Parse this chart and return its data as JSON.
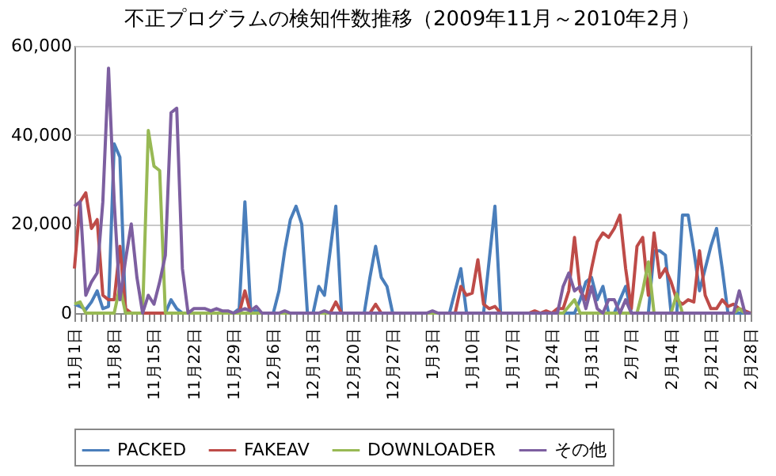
{
  "chart_data": {
    "type": "line",
    "title": "不正プログラムの検知件数推移（2009年11月～2010年2月）",
    "categories": [
      "11月1日",
      null,
      null,
      null,
      null,
      null,
      null,
      "11月8日",
      null,
      null,
      null,
      null,
      null,
      null,
      "11月15日",
      null,
      null,
      null,
      null,
      null,
      null,
      "11月22日",
      null,
      null,
      null,
      null,
      null,
      null,
      "11月29日",
      null,
      null,
      null,
      null,
      null,
      null,
      "12月6日",
      null,
      null,
      null,
      null,
      null,
      null,
      "12月13日",
      null,
      null,
      null,
      null,
      null,
      null,
      "12月20日",
      null,
      null,
      null,
      null,
      null,
      null,
      "12月27日",
      null,
      null,
      null,
      null,
      null,
      null,
      "1月3日",
      null,
      null,
      null,
      null,
      null,
      null,
      "1月10日",
      null,
      null,
      null,
      null,
      null,
      null,
      "1月17日",
      null,
      null,
      null,
      null,
      null,
      null,
      "1月24日",
      null,
      null,
      null,
      null,
      null,
      null,
      "1月31日",
      null,
      null,
      null,
      null,
      null,
      null,
      "2月7日",
      null,
      null,
      null,
      null,
      null,
      null,
      "2月14日",
      null,
      null,
      null,
      null,
      null,
      null,
      "2月21日",
      null,
      null,
      null,
      null,
      null,
      null,
      "2月28日"
    ],
    "series": [
      {
        "name": "PACKED",
        "color": "#4a7ebb",
        "values": [
          2000,
          1500,
          800,
          2500,
          5000,
          1000,
          1500,
          38000,
          35000,
          0,
          0,
          0,
          0,
          0,
          0,
          0,
          0,
          3000,
          1000,
          0,
          0,
          0,
          0,
          0,
          0,
          0,
          0,
          0,
          0,
          1000,
          25000,
          1000,
          500,
          0,
          0,
          0,
          5000,
          14000,
          21000,
          24000,
          20000,
          0,
          0,
          6000,
          4000,
          14000,
          24000,
          0,
          0,
          0,
          0,
          0,
          8000,
          15000,
          8000,
          6000,
          0,
          0,
          0,
          0,
          0,
          0,
          0,
          0,
          0,
          0,
          0,
          5000,
          10000,
          0,
          0,
          0,
          0,
          12000,
          24000,
          0,
          0,
          0,
          0,
          0,
          0,
          0,
          0,
          0,
          0,
          0,
          0,
          0,
          0,
          3000,
          7000,
          8000,
          3000,
          6000,
          0,
          0,
          3000,
          6000,
          0,
          0,
          0,
          0,
          14000,
          14000,
          13000,
          0,
          0,
          22000,
          22000,
          14000,
          5000,
          10000,
          15000,
          19000,
          10000,
          0,
          0,
          0,
          0,
          0
        ]
      },
      {
        "name": "FAKEAV",
        "color": "#be4b48",
        "values": [
          10000,
          25000,
          27000,
          19000,
          21000,
          4000,
          3000,
          3000,
          15000,
          1000,
          0,
          0,
          0,
          0,
          0,
          0,
          0,
          0,
          0,
          0,
          0,
          0,
          0,
          0,
          0,
          0,
          0,
          0,
          0,
          0,
          5000,
          0,
          0,
          0,
          0,
          0,
          0,
          0,
          0,
          0,
          0,
          0,
          0,
          0,
          0,
          0,
          2500,
          0,
          0,
          0,
          0,
          0,
          0,
          2000,
          0,
          0,
          0,
          0,
          0,
          0,
          0,
          0,
          0,
          0,
          0,
          0,
          0,
          0,
          6000,
          4000,
          4500,
          12000,
          2000,
          1000,
          1500,
          0,
          0,
          0,
          0,
          0,
          0,
          500,
          0,
          500,
          0,
          1000,
          1000,
          5000,
          17000,
          5000,
          3000,
          10000,
          16000,
          18000,
          17000,
          19000,
          22000,
          10000,
          1000,
          15000,
          17000,
          4000,
          18000,
          8000,
          10000,
          7000,
          3000,
          2000,
          3000,
          2500,
          14000,
          4000,
          1000,
          1000,
          3000,
          1500,
          2000,
          1000,
          500,
          0
        ]
      },
      {
        "name": "DOWNLOADER",
        "color": "#98b954",
        "values": [
          2000,
          2500,
          0,
          0,
          0,
          0,
          0,
          0,
          6000,
          0,
          0,
          0,
          0,
          41000,
          33000,
          32000,
          0,
          0,
          0,
          0,
          0,
          0,
          0,
          0,
          0,
          0,
          0,
          0,
          0,
          0,
          0,
          0,
          0,
          0,
          0,
          0,
          0,
          0,
          0,
          0,
          0,
          0,
          0,
          0,
          0,
          0,
          0,
          0,
          0,
          0,
          0,
          0,
          0,
          0,
          0,
          0,
          0,
          0,
          0,
          0,
          0,
          0,
          0,
          0,
          0,
          0,
          0,
          0,
          0,
          0,
          0,
          0,
          0,
          0,
          0,
          0,
          0,
          0,
          0,
          0,
          0,
          0,
          0,
          0,
          0,
          0,
          0,
          1500,
          3000,
          0,
          0,
          0,
          0,
          0,
          0,
          0,
          0,
          0,
          0,
          0,
          5000,
          11500,
          0,
          0,
          0,
          0,
          4300,
          0,
          0,
          0,
          0,
          0,
          0,
          0,
          0,
          0,
          0,
          1000,
          0,
          0
        ]
      },
      {
        "name": "その他",
        "color": "#7d5fa0",
        "values": [
          24000,
          25000,
          4000,
          7000,
          9000,
          25000,
          55000,
          25000,
          3000,
          12000,
          20000,
          8000,
          0,
          4000,
          2000,
          7000,
          13000,
          45000,
          46000,
          10000,
          0,
          1000,
          1000,
          1000,
          500,
          1000,
          500,
          500,
          0,
          500,
          1000,
          500,
          1500,
          0,
          0,
          0,
          0,
          500,
          0,
          0,
          0,
          0,
          0,
          0,
          500,
          0,
          0,
          0,
          0,
          0,
          0,
          0,
          0,
          0,
          0,
          0,
          0,
          0,
          0,
          0,
          0,
          0,
          0,
          500,
          0,
          0,
          0,
          0,
          0,
          0,
          0,
          0,
          0,
          0,
          0,
          0,
          0,
          0,
          0,
          0,
          0,
          0,
          0,
          0,
          0,
          0,
          6000,
          9000,
          5000,
          6000,
          1000,
          6000,
          1000,
          0,
          3000,
          3000,
          0,
          3000,
          0,
          0,
          0,
          0,
          0,
          0,
          0,
          0,
          0,
          0,
          0,
          0,
          0,
          0,
          0,
          0,
          0,
          0,
          0,
          5000,
          0,
          0
        ]
      }
    ],
    "ylim": [
      0,
      60000
    ],
    "yticks": [
      {
        "value": 0,
        "label": "0"
      },
      {
        "value": 20000,
        "label": "20,000"
      },
      {
        "value": 40000,
        "label": "40,000"
      },
      {
        "value": 60000,
        "label": "60,000"
      }
    ],
    "grid": "y",
    "legend": "bottom",
    "marker": "none",
    "line_style": "solid"
  }
}
